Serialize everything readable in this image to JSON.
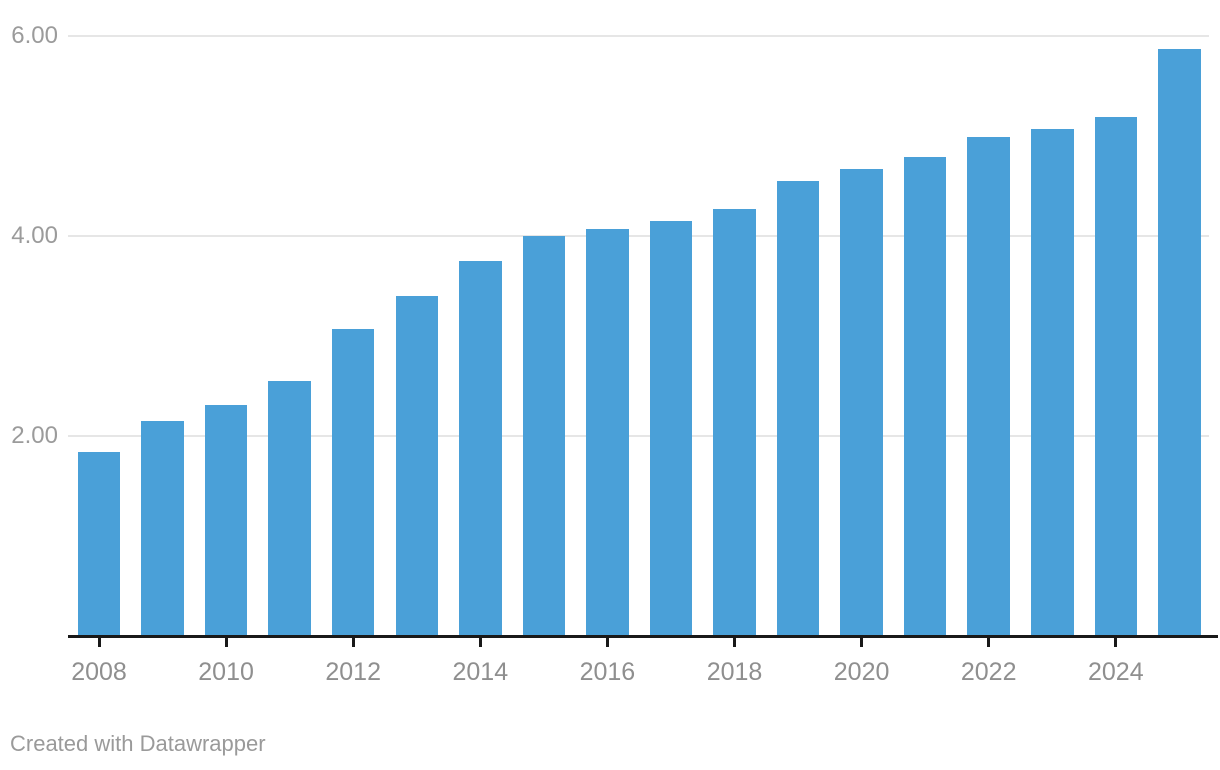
{
  "chart_data": {
    "type": "bar",
    "categories": [
      2008,
      2009,
      2010,
      2011,
      2012,
      2013,
      2014,
      2015,
      2016,
      2017,
      2018,
      2019,
      2020,
      2021,
      2022,
      2023,
      2024,
      2025
    ],
    "values": [
      1.84,
      2.15,
      2.31,
      2.55,
      3.07,
      3.4,
      3.75,
      4.0,
      4.07,
      4.15,
      4.27,
      4.55,
      4.67,
      4.79,
      4.99,
      5.07,
      5.19,
      5.87
    ],
    "title": "",
    "xlabel": "",
    "ylabel": "",
    "ylim": [
      0,
      6.35
    ],
    "grid": "horizontal",
    "legend_position": "none",
    "y_ticks": [
      {
        "value": 2,
        "label": "2.00"
      },
      {
        "value": 4,
        "label": "4.00"
      },
      {
        "value": 6,
        "label": "6.00"
      }
    ],
    "x_ticks": [
      {
        "year": 2008,
        "label": "2008"
      },
      {
        "year": 2010,
        "label": "2010"
      },
      {
        "year": 2012,
        "label": "2012"
      },
      {
        "year": 2014,
        "label": "2014"
      },
      {
        "year": 2016,
        "label": "2016"
      },
      {
        "year": 2018,
        "label": "2018"
      },
      {
        "year": 2020,
        "label": "2020"
      },
      {
        "year": 2022,
        "label": "2022"
      },
      {
        "year": 2024,
        "label": "2024"
      }
    ],
    "colors": {
      "bar": "#4aa0d8",
      "gridline": "#e6e6e6",
      "axis": "#191919",
      "y_label_text": "#9b9b9b",
      "x_label_text": "#8f8f8f"
    }
  },
  "footer": {
    "attribution": "Created with Datawrapper"
  }
}
